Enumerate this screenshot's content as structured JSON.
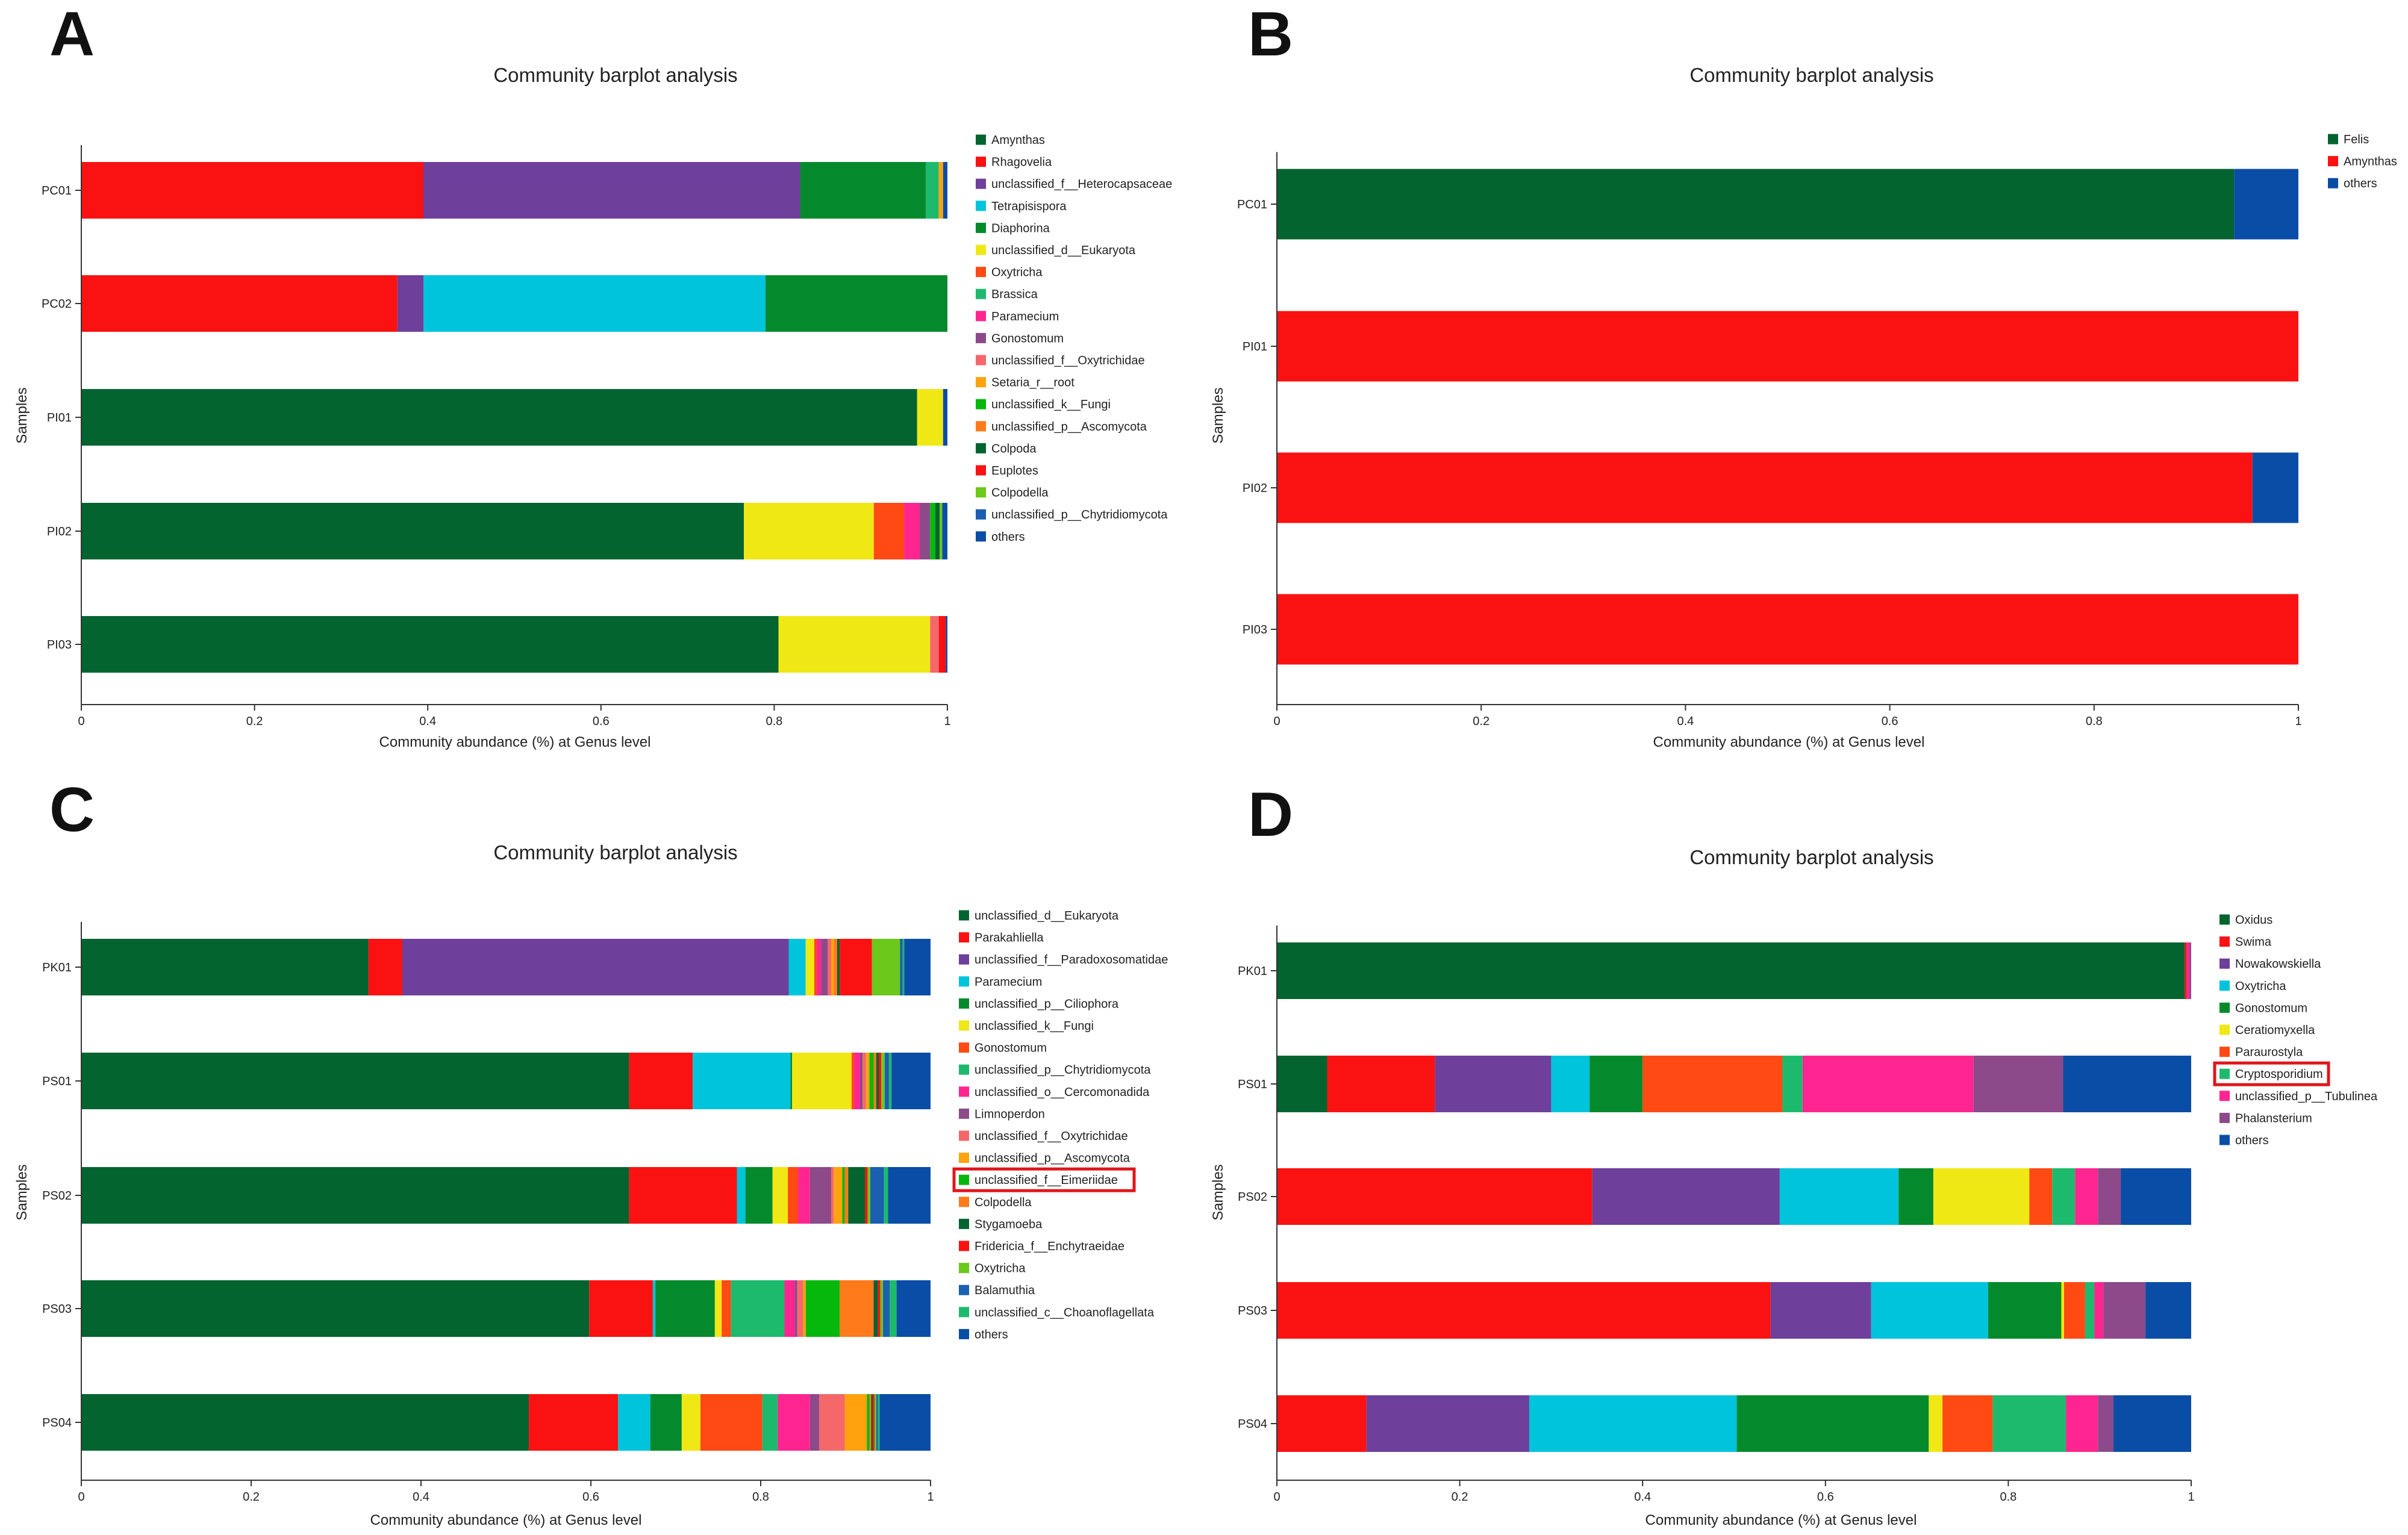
{
  "figure": {
    "colors": {
      "dark_green": "#046430",
      "red": "#fa1212",
      "purple": "#6e3f9b",
      "cyan": "#00c4db",
      "green": "#048a2c",
      "yellow": "#f0e815",
      "orange_red": "#ff4a14",
      "mint": "#1dba6d",
      "pink": "#ff2590",
      "plum": "#8c4a8a",
      "salmon": "#f5686a",
      "amber": "#ffa20e",
      "bright_green": "#06b80c",
      "orange": "#ff7a1a",
      "lime": "#6cc81a",
      "blue": "#1a5fb0",
      "navy": "#0a4da6"
    }
  },
  "chart_data": [
    {
      "panel": "A",
      "type": "bar",
      "orientation": "horizontal-stacked",
      "title": "Community barplot analysis",
      "xlabel": "Community abundance (%) at Genus level",
      "ylabel": "Samples",
      "xlim": [
        0,
        1
      ],
      "xticks": [
        "0",
        "0.2",
        "0.4",
        "0.6",
        "0.8",
        "1"
      ],
      "categories": [
        "PC01",
        "PC02",
        "PI01",
        "PI02",
        "PI03"
      ],
      "series": [
        {
          "name": "Amynthas",
          "color": "#046430",
          "values": [
            0,
            0,
            0.965,
            0.765,
            0.805
          ]
        },
        {
          "name": "Rhagovelia",
          "color": "#fa1212",
          "values": [
            0.395,
            0.365,
            0,
            0,
            0
          ]
        },
        {
          "name": "unclassified_f__Heterocapsaceae",
          "color": "#6e3f9b",
          "values": [
            0.435,
            0.03,
            0,
            0,
            0
          ]
        },
        {
          "name": "Tetrapisispora",
          "color": "#00c4db",
          "values": [
            0,
            0.395,
            0,
            0,
            0
          ]
        },
        {
          "name": "Diaphorina",
          "color": "#048a2c",
          "values": [
            0.145,
            0.21,
            0,
            0,
            0
          ]
        },
        {
          "name": "unclassified_d__Eukaryota",
          "color": "#f0e815",
          "values": [
            0,
            0,
            0.03,
            0.15,
            0.175
          ]
        },
        {
          "name": "Oxytricha",
          "color": "#ff4a14",
          "values": [
            0,
            0,
            0,
            0.035,
            0
          ]
        },
        {
          "name": "Brassica",
          "color": "#1dba6d",
          "values": [
            0.015,
            0,
            0,
            0,
            0
          ]
        },
        {
          "name": "Paramecium",
          "color": "#ff2590",
          "values": [
            0,
            0,
            0,
            0.018,
            0
          ]
        },
        {
          "name": "Gonostomum",
          "color": "#8c4a8a",
          "values": [
            0,
            0,
            0,
            0.012,
            0
          ]
        },
        {
          "name": "unclassified_f__Oxytrichidae",
          "color": "#f5686a",
          "values": [
            0,
            0,
            0,
            0,
            0.01
          ]
        },
        {
          "name": "Setaria_r__root",
          "color": "#ffa20e",
          "values": [
            0.005,
            0,
            0,
            0,
            0
          ]
        },
        {
          "name": "unclassified_k__Fungi",
          "color": "#06b80c",
          "values": [
            0,
            0,
            0,
            0.006,
            0
          ]
        },
        {
          "name": "unclassified_p__Ascomycota",
          "color": "#ff7a1a",
          "values": [
            0,
            0,
            0,
            0,
            0
          ]
        },
        {
          "name": "Colpoda",
          "color": "#046430",
          "values": [
            0,
            0,
            0,
            0.005,
            0
          ]
        },
        {
          "name": "Euplotes",
          "color": "#fa1212",
          "values": [
            0,
            0,
            0,
            0,
            0.008
          ]
        },
        {
          "name": "Colpodella",
          "color": "#6cc81a",
          "values": [
            0,
            0,
            0,
            0.003,
            0
          ]
        },
        {
          "name": "unclassified_p__Chytridiomycota",
          "color": "#1a5fb0",
          "values": [
            0,
            0,
            0,
            0,
            0
          ]
        },
        {
          "name": "others",
          "color": "#0a4da6",
          "values": [
            0.005,
            0,
            0.005,
            0.006,
            0.002
          ]
        }
      ]
    },
    {
      "panel": "B",
      "type": "bar",
      "orientation": "horizontal-stacked",
      "title": "Community barplot analysis",
      "xlabel": "Community abundance (%) at Genus level",
      "ylabel": "Samples",
      "xlim": [
        0,
        1
      ],
      "xticks": [
        "0",
        "0.2",
        "0.4",
        "0.6",
        "0.8",
        "1"
      ],
      "categories": [
        "PC01",
        "PI01",
        "PI02",
        "PI03"
      ],
      "series": [
        {
          "name": "Felis",
          "color": "#046430",
          "values": [
            0.937,
            0,
            0,
            0
          ]
        },
        {
          "name": "Amynthas",
          "color": "#fa1212",
          "values": [
            0,
            1.0,
            0.955,
            1.0
          ]
        },
        {
          "name": "others",
          "color": "#0a4da6",
          "values": [
            0.063,
            0,
            0.045,
            0
          ]
        }
      ]
    },
    {
      "panel": "C",
      "type": "bar",
      "orientation": "horizontal-stacked",
      "title": "Community barplot analysis",
      "xlabel": "Community abundance (%) at Genus level",
      "ylabel": "Samples",
      "xlim": [
        0,
        1
      ],
      "xticks": [
        "0",
        "0.2",
        "0.4",
        "0.6",
        "0.8",
        "1"
      ],
      "highlight": "unclassified_f__Eimeriidae",
      "categories": [
        "PK01",
        "PS01",
        "PS02",
        "PS03",
        "PS04"
      ],
      "series": [
        {
          "name": "unclassified_d__Eukaryota",
          "color": "#046430",
          "values": [
            0.338,
            0.645,
            0.645,
            0.598,
            0.527
          ]
        },
        {
          "name": "Parakahliella",
          "color": "#fa1212",
          "values": [
            0.04,
            0.075,
            0.127,
            0.075,
            0.105
          ]
        },
        {
          "name": "unclassified_f__Paradoxosomatidae",
          "color": "#6e3f9b",
          "values": [
            0.455,
            0,
            0,
            0,
            0
          ]
        },
        {
          "name": "Paramecium",
          "color": "#00c4db",
          "values": [
            0.02,
            0.115,
            0.01,
            0.003,
            0.038
          ]
        },
        {
          "name": "unclassified_p__Ciliophora",
          "color": "#048a2c",
          "values": [
            0,
            0.002,
            0.032,
            0.07,
            0.037
          ]
        },
        {
          "name": "unclassified_k__Fungi",
          "color": "#f0e815",
          "values": [
            0.01,
            0.07,
            0.018,
            0.008,
            0.022
          ]
        },
        {
          "name": "Gonostomum",
          "color": "#ff4a14",
          "values": [
            0.003,
            0.003,
            0.012,
            0.011,
            0.073
          ]
        },
        {
          "name": "unclassified_p__Chytridiomycota",
          "color": "#1dba6d",
          "values": [
            0,
            0,
            0,
            0.063,
            0.018
          ]
        },
        {
          "name": "unclassified_o__Cercomonadida",
          "color": "#ff2590",
          "values": [
            0.005,
            0.007,
            0.014,
            0.012,
            0.038
          ]
        },
        {
          "name": "Limnoperdon",
          "color": "#8c4a8a",
          "values": [
            0.008,
            0.003,
            0.025,
            0.003,
            0.011
          ]
        },
        {
          "name": "unclassified_f__Oxytrichidae",
          "color": "#f5686a",
          "values": [
            0.004,
            0.004,
            0.003,
            0.007,
            0.03
          ]
        },
        {
          "name": "unclassified_p__Ascomycota",
          "color": "#ffa20e",
          "values": [
            0.003,
            0.004,
            0.01,
            0.003,
            0.026
          ]
        },
        {
          "name": "unclassified_f__Eimeriidae",
          "color": "#06b80c",
          "values": [
            0,
            0.005,
            0.003,
            0.04,
            0.003
          ]
        },
        {
          "name": "Colpodella",
          "color": "#ff7a1a",
          "values": [
            0.004,
            0.003,
            0.004,
            0.04,
            0.002
          ]
        },
        {
          "name": "Stygamoeba",
          "color": "#046430",
          "values": [
            0.003,
            0.003,
            0.02,
            0.005,
            0.002
          ]
        },
        {
          "name": "Fridericia_f__Enchytraeidae",
          "color": "#fa1212",
          "values": [
            0.038,
            0.003,
            0.003,
            0.003,
            0.002
          ]
        },
        {
          "name": "Oxytricha",
          "color": "#6cc81a",
          "values": [
            0.033,
            0.004,
            0.003,
            0.003,
            0.002
          ]
        },
        {
          "name": "Balamuthia",
          "color": "#1a5fb0",
          "values": [
            0.003,
            0.005,
            0.016,
            0.008,
            0.002
          ]
        },
        {
          "name": "unclassified_c__Choanoflagellata",
          "color": "#1dba6d",
          "values": [
            0.002,
            0.003,
            0.005,
            0.008,
            0.002
          ]
        },
        {
          "name": "others",
          "color": "#0a4da6",
          "values": [
            0.041,
            0.047,
            0.05,
            0.041,
            0.069
          ]
        }
      ]
    },
    {
      "panel": "D",
      "type": "bar",
      "orientation": "horizontal-stacked",
      "title": "Community barplot analysis",
      "xlabel": "Community abundance (%) at Genus level",
      "ylabel": "Samples",
      "xlim": [
        0,
        1
      ],
      "xticks": [
        "0",
        "0.2",
        "0.4",
        "0.6",
        "0.8",
        "1"
      ],
      "highlight": "Cryptosporidium",
      "categories": [
        "PK01",
        "PS01",
        "PS02",
        "PS03",
        "PS04"
      ],
      "series": [
        {
          "name": "Oxidus",
          "color": "#046430",
          "values": [
            0.993,
            0.055,
            0,
            0,
            0
          ]
        },
        {
          "name": "Swima",
          "color": "#fa1212",
          "values": [
            0.002,
            0.118,
            0.345,
            0.54,
            0.098
          ]
        },
        {
          "name": "Nowakowskiella",
          "color": "#6e3f9b",
          "values": [
            0,
            0.127,
            0.205,
            0.11,
            0.178
          ]
        },
        {
          "name": "Oxytricha",
          "color": "#00c4db",
          "values": [
            0,
            0.042,
            0.13,
            0.128,
            0.227
          ]
        },
        {
          "name": "Gonostomum",
          "color": "#048a2c",
          "values": [
            0,
            0.058,
            0.038,
            0.08,
            0.21
          ]
        },
        {
          "name": "Ceratiomyxella",
          "color": "#f0e815",
          "values": [
            0,
            0,
            0.105,
            0.003,
            0.015
          ]
        },
        {
          "name": "Paraurostyla",
          "color": "#ff4a14",
          "values": [
            0,
            0.153,
            0.025,
            0.023,
            0.055
          ]
        },
        {
          "name": "Cryptosporidium",
          "color": "#1dba6d",
          "values": [
            0,
            0.022,
            0.025,
            0.01,
            0.08
          ]
        },
        {
          "name": "unclassified_p__Tubulinea",
          "color": "#ff2590",
          "values": [
            0.003,
            0.187,
            0.025,
            0.01,
            0.035
          ]
        },
        {
          "name": "Phalansterium",
          "color": "#8c4a8a",
          "values": [
            0.002,
            0.098,
            0.025,
            0.046,
            0.017
          ]
        },
        {
          "name": "others",
          "color": "#0a4da6",
          "values": [
            0,
            0.14,
            0.077,
            0.05,
            0.085
          ]
        }
      ]
    }
  ]
}
